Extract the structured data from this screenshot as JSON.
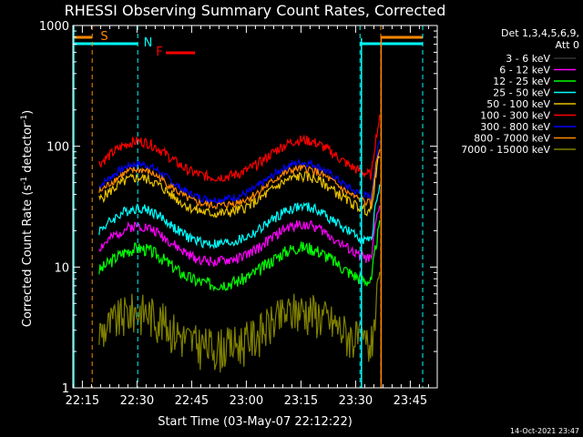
{
  "chart_data": {
    "type": "line",
    "title": "RHESSI Observing Summary Count Rates, Corrected",
    "xlabel": "Start Time (03-May-07 22:12:22)",
    "ylabel": "Corrected Count Rate (s",
    "ylabel_sup1": "-1",
    "ylabel_mid": " detector",
    "ylabel_sup2": "-1",
    "ylabel_end": ")",
    "yscale": "log",
    "ylim": [
      1,
      1000
    ],
    "xlim_minutes": [
      0,
      100
    ],
    "x_ticks": [
      {
        "label": "22:15",
        "min": 2.6
      },
      {
        "label": "22:30",
        "min": 17.6
      },
      {
        "label": "22:45",
        "min": 32.6
      },
      {
        "label": "23:00",
        "min": 47.6
      },
      {
        "label": "23:15",
        "min": 62.6
      },
      {
        "label": "23:30",
        "min": 77.6
      },
      {
        "label": "23:45",
        "min": 92.6
      }
    ],
    "y_ticks": [
      {
        "label": "1",
        "value": 1
      },
      {
        "label": "10",
        "value": 10
      },
      {
        "label": "100",
        "value": 100
      },
      {
        "label": "1000",
        "value": 1000
      }
    ],
    "legend_header": [
      "Det 1,3,4,5,6,9,",
      "Att 0"
    ],
    "series": [
      {
        "name": "3 - 6 keV",
        "color": "#000000",
        "base": 15,
        "amp": 0.35,
        "seed": 1
      },
      {
        "name": "6 - 12 keV",
        "color": "#ff00ff",
        "base": 20,
        "amp": 0.2,
        "seed": 2
      },
      {
        "name": "12 - 25 keV",
        "color": "#00ff00",
        "base": 13,
        "amp": 0.25,
        "seed": 3
      },
      {
        "name": "25 - 50 keV",
        "color": "#00ffff",
        "base": 28,
        "amp": 0.2,
        "seed": 4
      },
      {
        "name": "50 - 100 keV",
        "color": "#e8c000",
        "base": 50,
        "amp": 0.2,
        "seed": 5
      },
      {
        "name": "100 - 300 keV",
        "color": "#ff0000",
        "base": 100,
        "amp": 0.2,
        "seed": 6
      },
      {
        "name": "300 - 800 keV",
        "color": "#0000ff",
        "base": 65,
        "amp": 0.15,
        "seed": 7
      },
      {
        "name": "800 - 7000 keV",
        "color": "#ff8800",
        "base": 58,
        "amp": 0.15,
        "seed": 8
      },
      {
        "name": "7000 - 15000 keV",
        "color": "#808000",
        "base": 4,
        "amp": 0.8,
        "seed": 9
      }
    ],
    "annotations": [
      {
        "text": "S",
        "color": "#ff8800"
      },
      {
        "text": "N",
        "color": "#00ffff"
      },
      {
        "text": "F",
        "color": "#ff0000"
      }
    ],
    "footer_date": "14-Oct-2021 23:47"
  }
}
